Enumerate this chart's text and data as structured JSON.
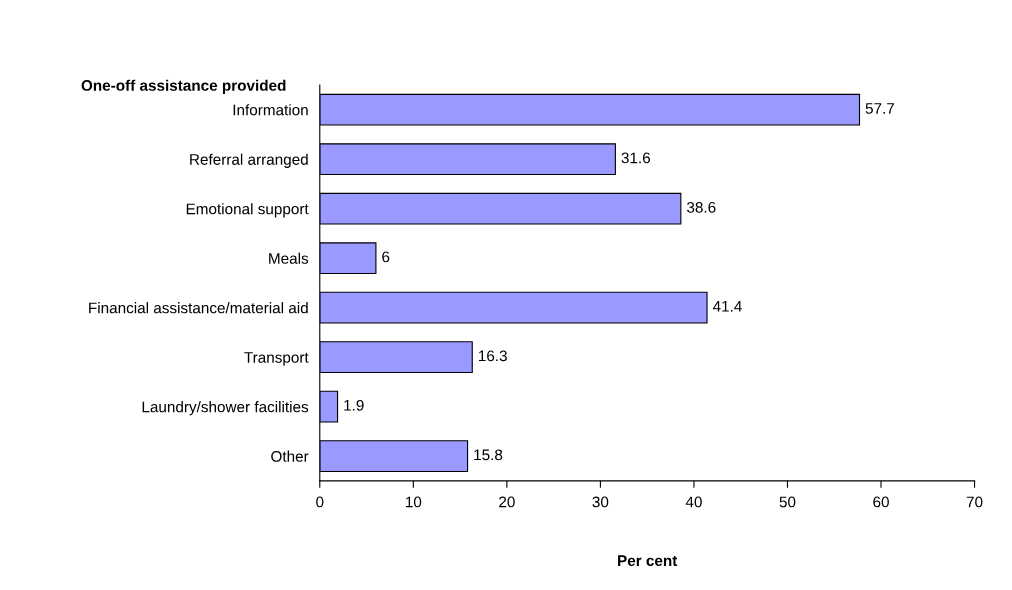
{
  "chart_data": {
    "type": "bar",
    "orientation": "horizontal",
    "ylabel": "One-off assistance provided",
    "xlabel": "Per cent",
    "categories": [
      "Information",
      "Referral arranged",
      "Emotional support",
      "Meals",
      "Financial assistance/material aid",
      "Transport",
      "Laundry/shower facilities",
      "Other"
    ],
    "values": [
      57.7,
      31.6,
      38.6,
      6,
      41.4,
      16.3,
      1.9,
      15.8
    ],
    "color": "#9999ff",
    "data_labels": true,
    "xlim": [
      0,
      70
    ],
    "xticks": [
      0,
      10,
      20,
      30,
      40,
      50,
      60,
      70
    ],
    "grid": false,
    "legend": false
  }
}
